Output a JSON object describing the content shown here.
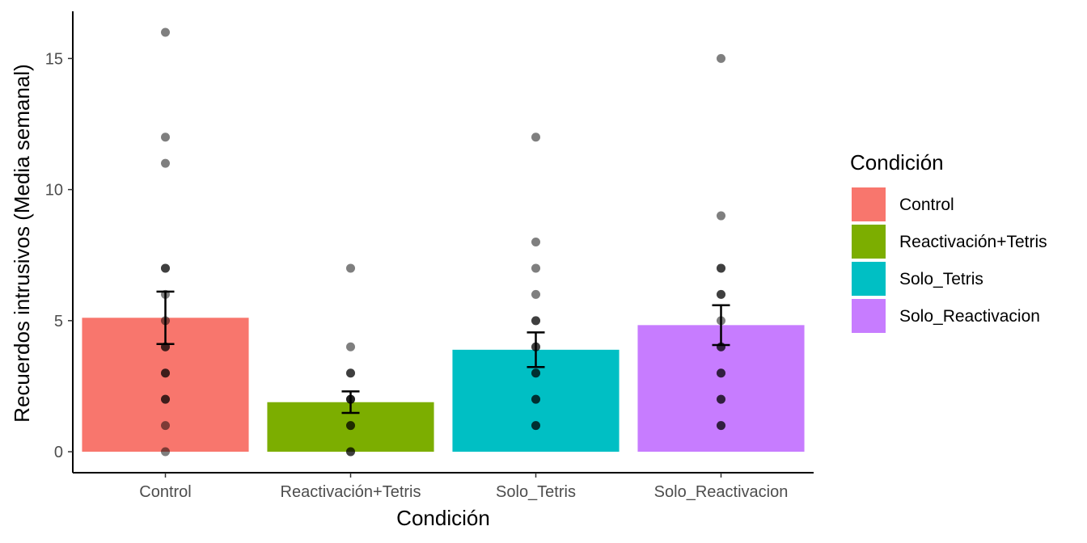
{
  "chart_data": {
    "type": "bar",
    "xlabel": "Condición",
    "ylabel": "Recuerdos intrusivos (Media semanal)",
    "ylim": [
      -0.8,
      16.8
    ],
    "yticks": [
      0,
      5,
      10,
      15
    ],
    "categories": [
      "Control",
      "Reactivación+Tetris",
      "Solo_Tetris",
      "Solo_Reactivacion"
    ],
    "means": [
      5.11,
      1.89,
      3.89,
      4.83
    ],
    "error_low": [
      4.11,
      1.48,
      3.23,
      4.07
    ],
    "error_high": [
      6.11,
      2.3,
      4.55,
      5.59
    ],
    "colors": [
      "#F8766D",
      "#7CAE00",
      "#00BFC4",
      "#C77CFF"
    ],
    "points": [
      [
        16,
        12,
        11,
        7,
        7,
        6,
        5,
        4,
        4,
        3,
        3,
        2,
        2,
        1,
        0
      ],
      [
        7,
        4,
        3,
        3,
        2,
        2,
        2,
        1,
        1,
        0,
        0
      ],
      [
        12,
        8,
        7,
        6,
        5,
        5,
        4,
        4,
        3,
        3,
        2,
        2,
        1,
        1
      ],
      [
        15,
        9,
        7,
        7,
        6,
        6,
        5,
        4,
        4,
        3,
        3,
        2,
        2,
        1,
        1
      ]
    ],
    "legend": {
      "title": "Condición",
      "position": "right",
      "entries": [
        "Control",
        "Reactivación+Tetris",
        "Solo_Tetris",
        "Solo_Reactivacion"
      ]
    },
    "grid": false
  }
}
